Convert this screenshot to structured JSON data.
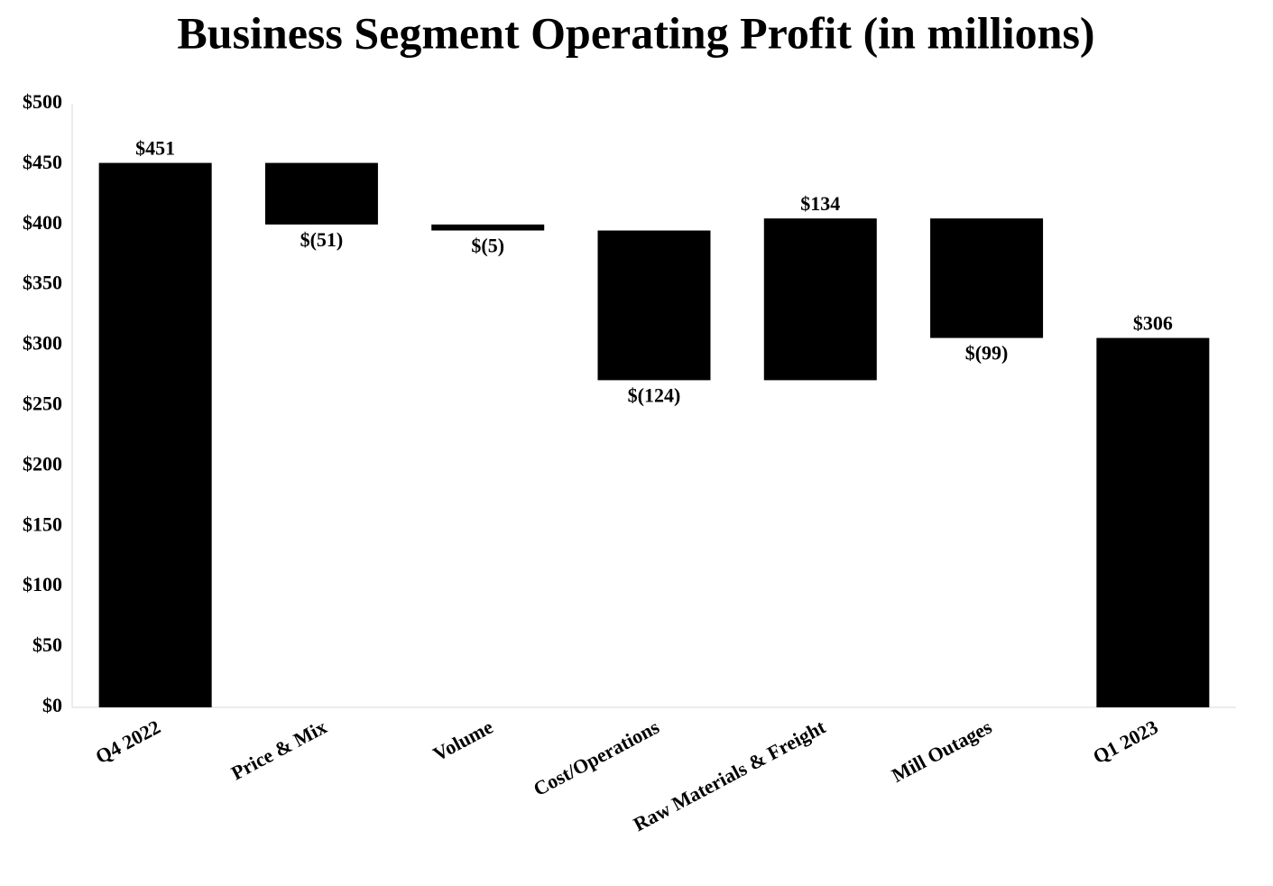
{
  "chart_data": {
    "type": "waterfall",
    "title": "Business Segment Operating Profit (in millions)",
    "categories": [
      "Q4 2022",
      "Price & Mix",
      "Volume",
      "Cost/Operations",
      "Raw Materials & Freight",
      "Mill Outages",
      "Q1 2023"
    ],
    "values": [
      451,
      -51,
      -5,
      -124,
      134,
      -99,
      306
    ],
    "value_labels": [
      "$451",
      "$(51)",
      "$(5)",
      "$(124)",
      "$134",
      "$(99)",
      "$306"
    ],
    "color": "#000000",
    "ylim": [
      0,
      500
    ],
    "yticks": [
      {
        "value": 0,
        "label": "$0"
      },
      {
        "value": 50,
        "label": "$50"
      },
      {
        "value": 100,
        "label": "$100"
      },
      {
        "value": 150,
        "label": "$150"
      },
      {
        "value": 200,
        "label": "$200"
      },
      {
        "value": 250,
        "label": "$250"
      },
      {
        "value": 300,
        "label": "$300"
      },
      {
        "value": 350,
        "label": "$350"
      },
      {
        "value": 400,
        "label": "$400"
      },
      {
        "value": 450,
        "label": "$450"
      },
      {
        "value": 500,
        "label": "$500"
      }
    ],
    "grid": false
  }
}
